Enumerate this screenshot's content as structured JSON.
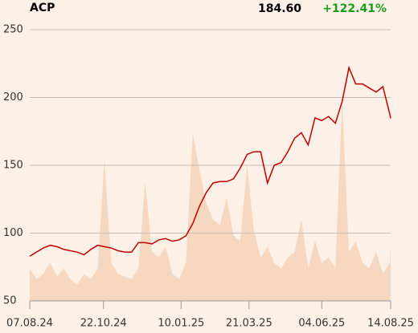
{
  "chart_data": {
    "type": "line",
    "title": "ACP",
    "price": "184.60",
    "change": "+122.41%",
    "change_color": "#1a9e1a",
    "x": [
      "07.08.24",
      "14.08.24",
      "21.08.24",
      "28.08.24",
      "04.09.24",
      "11.09.24",
      "18.09.24",
      "25.09.24",
      "02.10.24",
      "09.10.24",
      "16.10.24",
      "23.10.24",
      "30.10.24",
      "06.11.24",
      "13.11.24",
      "20.11.24",
      "27.11.24",
      "04.12.24",
      "11.12.24",
      "18.12.24",
      "25.12.24",
      "01.01.25",
      "08.01.25",
      "15.01.25",
      "22.01.25",
      "29.01.25",
      "05.02.25",
      "12.02.25",
      "19.02.25",
      "26.02.25",
      "05.03.25",
      "12.03.25",
      "19.03.25",
      "26.03.25",
      "02.04.25",
      "09.04.25",
      "16.04.25",
      "23.04.25",
      "30.04.25",
      "07.05.25",
      "14.05.25",
      "21.05.25",
      "28.05.25",
      "04.06.25",
      "11.06.25",
      "18.06.25",
      "25.06.25",
      "02.07.25",
      "09.07.25",
      "16.07.25",
      "23.07.25",
      "30.07.25",
      "06.08.25",
      "13.08.25",
      "14.08.25"
    ],
    "series": [
      {
        "name": "ACP",
        "color": "#c00000",
        "values": [
          83,
          86,
          89,
          91,
          90,
          88,
          87,
          86,
          84,
          88,
          91,
          90,
          89,
          87,
          86,
          86,
          93,
          93,
          92,
          95,
          96,
          94,
          95,
          98,
          107,
          120,
          130,
          137,
          138,
          138,
          140,
          148,
          158,
          160,
          160,
          137,
          150,
          152,
          160,
          170,
          174,
          165,
          185,
          183,
          186,
          181,
          197,
          222,
          210,
          210,
          207,
          204,
          208,
          188,
          184.6
        ]
      },
      {
        "name": "Volume",
        "color": "#f6d8c0",
        "axis": "y2",
        "values": [
          12,
          8,
          10,
          14,
          9,
          12,
          8,
          6,
          10,
          8,
          12,
          52,
          14,
          10,
          9,
          8,
          12,
          44,
          18,
          16,
          20,
          10,
          8,
          14,
          62,
          48,
          36,
          30,
          28,
          38,
          24,
          22,
          50,
          26,
          16,
          20,
          14,
          12,
          16,
          18,
          30,
          12,
          22,
          14,
          16,
          12,
          74,
          18,
          22,
          14,
          12,
          18,
          10,
          14,
          20
        ]
      }
    ],
    "xlim": [
      "07.08.24",
      "14.08.25"
    ],
    "xticks": [
      "07.08.24",
      "22.10.24",
      "10.01.25",
      "21.03.25",
      "04.06.25",
      "14.08.25"
    ],
    "ylim": [
      50,
      250
    ],
    "yticks": [
      50,
      100,
      150,
      200,
      250
    ],
    "y2lim": [
      0,
      100
    ],
    "grid": true
  }
}
